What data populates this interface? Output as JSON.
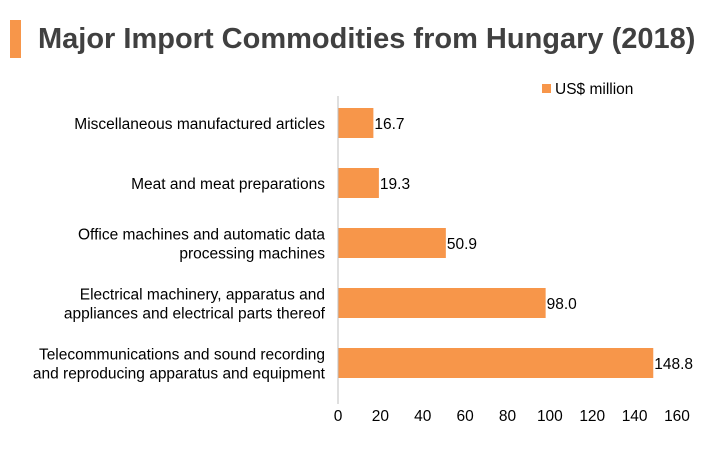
{
  "title": "Major Import Commodities from Hungary (2018)",
  "colors": {
    "accent": "#f7964a",
    "bar": "#f7964a",
    "axis": "#bfbfbf",
    "title": "#404040"
  },
  "chart_data": {
    "type": "bar",
    "orientation": "horizontal",
    "categories": [
      [
        "Miscellaneous manufactured articles"
      ],
      [
        "Meat and meat preparations"
      ],
      [
        "Office machines and automatic data",
        "processing machines"
      ],
      [
        "Electrical machinery, apparatus and",
        "appliances and electrical parts thereof"
      ],
      [
        "Telecommunications and sound recording",
        "and reproducing apparatus and equipment"
      ]
    ],
    "series": [
      {
        "name": "US$ million",
        "values": [
          16.7,
          19.3,
          50.9,
          98.0,
          148.8
        ],
        "value_labels": [
          "16.7",
          "19.3",
          "50.9",
          "98.0",
          "148.8"
        ]
      }
    ],
    "xlim": [
      0,
      160
    ],
    "xticks": [
      0,
      20,
      40,
      60,
      80,
      100,
      120,
      140,
      160
    ],
    "grid": false,
    "legend": "top-right",
    "xlabel": "",
    "ylabel": ""
  }
}
